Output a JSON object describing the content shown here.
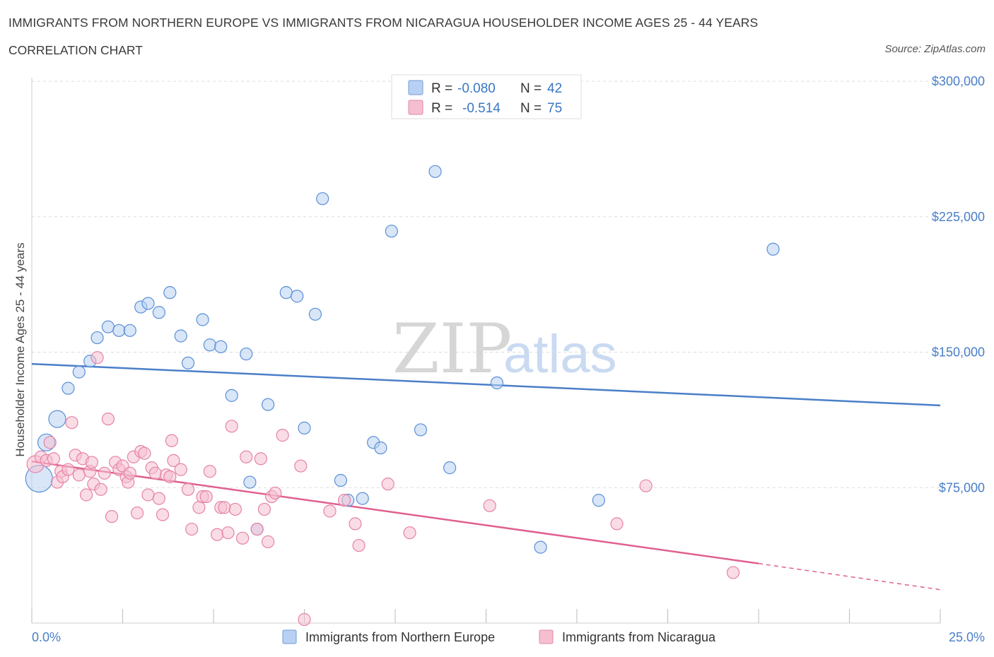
{
  "header": {
    "title": "IMMIGRANTS FROM NORTHERN EUROPE VS IMMIGRANTS FROM NICARAGUA HOUSEHOLDER INCOME AGES 25 - 44 YEARS",
    "subtitle": "CORRELATION CHART",
    "source": "Source: ZipAtlas.com"
  },
  "watermark": "ZIPatlas",
  "colors": {
    "blue": "#4a7fc8",
    "blue_fill": "#b8d1f3",
    "pink": "#e06090",
    "pink_fill": "#f5bfd0",
    "grid": "#dddddd",
    "axis_text": "#4a7fc8"
  },
  "legend": {
    "rows": [
      {
        "r_label": "R =",
        "r_value": "-0.080",
        "n_label": "N =",
        "n_value": "42"
      },
      {
        "r_label": "R =",
        "r_value": "-0.514",
        "n_label": "N =",
        "n_value": "75"
      }
    ]
  },
  "bottom_legend": {
    "items": [
      "Immigrants from Northern Europe",
      "Immigrants from Nicaragua"
    ]
  },
  "chart_data": {
    "type": "scatter",
    "title": "IMMIGRANTS FROM NORTHERN EUROPE VS IMMIGRANTS FROM NICARAGUA HOUSEHOLDER INCOME AGES 25 - 44 YEARS",
    "ylabel": "Householder Income Ages 25 - 44 years",
    "xlabel": "",
    "xlim": [
      0,
      25
    ],
    "ylim": [
      0,
      300000
    ],
    "x_tick_labels": [
      "0.0%",
      "25.0%"
    ],
    "y_tick_labels": [
      "$75,000",
      "$150,000",
      "$225,000",
      "$300,000"
    ],
    "y_ticks": [
      75000,
      150000,
      225000,
      300000
    ],
    "grid": true,
    "legend_position": "top-center",
    "series": [
      {
        "name": "Immigrants from Northern Europe",
        "r": -0.08,
        "n": 42,
        "trend": {
          "x": [
            0,
            25
          ],
          "y": [
            143500,
            120500
          ]
        },
        "points": [
          {
            "x": 0.2,
            "y": 80000,
            "s": 3
          },
          {
            "x": 0.4,
            "y": 100000,
            "s": 2
          },
          {
            "x": 0.7,
            "y": 113000,
            "s": 2
          },
          {
            "x": 1.0,
            "y": 130000
          },
          {
            "x": 1.3,
            "y": 139000
          },
          {
            "x": 1.6,
            "y": 145000
          },
          {
            "x": 1.8,
            "y": 158000
          },
          {
            "x": 2.1,
            "y": 164000
          },
          {
            "x": 2.4,
            "y": 162000
          },
          {
            "x": 2.7,
            "y": 162000
          },
          {
            "x": 3.0,
            "y": 175000
          },
          {
            "x": 3.2,
            "y": 177000
          },
          {
            "x": 3.5,
            "y": 172000
          },
          {
            "x": 3.8,
            "y": 183000
          },
          {
            "x": 4.1,
            "y": 159000
          },
          {
            "x": 4.3,
            "y": 144000
          },
          {
            "x": 4.7,
            "y": 168000
          },
          {
            "x": 4.9,
            "y": 154000
          },
          {
            "x": 5.2,
            "y": 153000
          },
          {
            "x": 5.5,
            "y": 126000
          },
          {
            "x": 5.9,
            "y": 149000
          },
          {
            "x": 6.2,
            "y": 52000
          },
          {
            "x": 6.0,
            "y": 78000
          },
          {
            "x": 6.5,
            "y": 121000
          },
          {
            "x": 7.0,
            "y": 183000
          },
          {
            "x": 7.3,
            "y": 181000
          },
          {
            "x": 7.5,
            "y": 108000
          },
          {
            "x": 7.8,
            "y": 171000
          },
          {
            "x": 8.0,
            "y": 235000
          },
          {
            "x": 8.5,
            "y": 79000
          },
          {
            "x": 8.7,
            "y": 68000
          },
          {
            "x": 9.1,
            "y": 69000
          },
          {
            "x": 9.4,
            "y": 100000
          },
          {
            "x": 9.6,
            "y": 97000
          },
          {
            "x": 9.9,
            "y": 217000
          },
          {
            "x": 10.7,
            "y": 107000
          },
          {
            "x": 11.1,
            "y": 250000
          },
          {
            "x": 11.5,
            "y": 86000
          },
          {
            "x": 12.8,
            "y": 133000
          },
          {
            "x": 14.0,
            "y": 42000
          },
          {
            "x": 15.6,
            "y": 68000
          },
          {
            "x": 20.4,
            "y": 207000
          }
        ]
      },
      {
        "name": "Immigrants from Nicaragua",
        "r": -0.514,
        "n": 75,
        "trend": {
          "x": [
            0,
            20.0
          ],
          "y": [
            89500,
            33000
          ]
        },
        "trend_dashed": {
          "x": [
            20.0,
            25
          ],
          "y": [
            33000,
            18500
          ]
        },
        "points": [
          {
            "x": 0.1,
            "y": 88000,
            "s": 2
          },
          {
            "x": 0.25,
            "y": 92000
          },
          {
            "x": 0.4,
            "y": 90000
          },
          {
            "x": 0.5,
            "y": 100000
          },
          {
            "x": 0.6,
            "y": 91000
          },
          {
            "x": 0.7,
            "y": 78000
          },
          {
            "x": 0.8,
            "y": 84000
          },
          {
            "x": 0.85,
            "y": 81000
          },
          {
            "x": 1.0,
            "y": 85000
          },
          {
            "x": 1.1,
            "y": 111000
          },
          {
            "x": 1.2,
            "y": 93000
          },
          {
            "x": 1.3,
            "y": 82000
          },
          {
            "x": 1.4,
            "y": 91000
          },
          {
            "x": 1.5,
            "y": 71000
          },
          {
            "x": 1.6,
            "y": 84000
          },
          {
            "x": 1.65,
            "y": 89000
          },
          {
            "x": 1.7,
            "y": 77000
          },
          {
            "x": 1.8,
            "y": 147000
          },
          {
            "x": 1.9,
            "y": 74000
          },
          {
            "x": 2.0,
            "y": 83000
          },
          {
            "x": 2.1,
            "y": 113000
          },
          {
            "x": 2.2,
            "y": 59000
          },
          {
            "x": 2.3,
            "y": 89000
          },
          {
            "x": 2.4,
            "y": 85000
          },
          {
            "x": 2.5,
            "y": 87000
          },
          {
            "x": 2.6,
            "y": 81000
          },
          {
            "x": 2.65,
            "y": 78000
          },
          {
            "x": 2.7,
            "y": 83000
          },
          {
            "x": 2.8,
            "y": 92000
          },
          {
            "x": 2.9,
            "y": 61000
          },
          {
            "x": 3.0,
            "y": 95000
          },
          {
            "x": 3.1,
            "y": 94000
          },
          {
            "x": 3.2,
            "y": 71000
          },
          {
            "x": 3.3,
            "y": 86000
          },
          {
            "x": 3.4,
            "y": 83000
          },
          {
            "x": 3.5,
            "y": 69000
          },
          {
            "x": 3.6,
            "y": 60000
          },
          {
            "x": 3.7,
            "y": 82000
          },
          {
            "x": 3.8,
            "y": 81000
          },
          {
            "x": 3.85,
            "y": 101000
          },
          {
            "x": 3.9,
            "y": 90000
          },
          {
            "x": 4.1,
            "y": 85000
          },
          {
            "x": 4.3,
            "y": 74000
          },
          {
            "x": 4.4,
            "y": 52000
          },
          {
            "x": 4.6,
            "y": 64000
          },
          {
            "x": 4.7,
            "y": 70000
          },
          {
            "x": 4.8,
            "y": 70000
          },
          {
            "x": 4.9,
            "y": 84000
          },
          {
            "x": 5.1,
            "y": 49000
          },
          {
            "x": 5.2,
            "y": 64000
          },
          {
            "x": 5.3,
            "y": 64000
          },
          {
            "x": 5.4,
            "y": 50000
          },
          {
            "x": 5.5,
            "y": 109000
          },
          {
            "x": 5.6,
            "y": 63000
          },
          {
            "x": 5.8,
            "y": 47000
          },
          {
            "x": 5.9,
            "y": 92000
          },
          {
            "x": 6.2,
            "y": 52000
          },
          {
            "x": 6.3,
            "y": 91000
          },
          {
            "x": 6.4,
            "y": 63000
          },
          {
            "x": 6.5,
            "y": 45000
          },
          {
            "x": 6.6,
            "y": 70000
          },
          {
            "x": 6.7,
            "y": 72000
          },
          {
            "x": 6.9,
            "y": 104000
          },
          {
            "x": 7.4,
            "y": 87000
          },
          {
            "x": 7.5,
            "y": 2000
          },
          {
            "x": 8.2,
            "y": 62000
          },
          {
            "x": 8.6,
            "y": 68000
          },
          {
            "x": 8.9,
            "y": 55000
          },
          {
            "x": 9.0,
            "y": 43000
          },
          {
            "x": 9.8,
            "y": 77000
          },
          {
            "x": 10.4,
            "y": 50000
          },
          {
            "x": 12.6,
            "y": 65000
          },
          {
            "x": 16.1,
            "y": 55000
          },
          {
            "x": 16.9,
            "y": 76000
          },
          {
            "x": 19.3,
            "y": 28000
          }
        ]
      }
    ]
  }
}
